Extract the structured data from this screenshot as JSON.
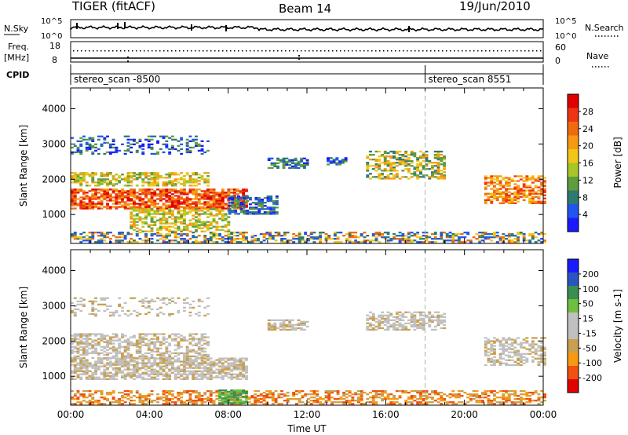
{
  "header": {
    "radar": "TIGER (fitACF)",
    "beam": "Beam 14",
    "date": "19/Jun/2010"
  },
  "param_panels": {
    "nsky_label": "N.Sky",
    "nsky_ticks": [
      "10^5",
      "10^0"
    ],
    "nsearch_label": "N.Search",
    "nsearch_ticks": [
      "10^5",
      "10^0"
    ],
    "freq_label_line1": "Freq.",
    "freq_label_line2": "[MHz]",
    "freq_ticks": [
      "18",
      "8"
    ],
    "nave_label": "Nave",
    "nave_ticks": [
      "60",
      "0"
    ],
    "cpid_label": "CPID",
    "cpid_segments": [
      {
        "name": "stereo_scan  -8500",
        "start_hour": 0
      },
      {
        "name": "stereo_scan  8551",
        "start_hour": 18
      }
    ]
  },
  "chart_data": [
    {
      "type": "heatmap",
      "title": "",
      "xlabel": "Time UT",
      "ylabel": "Slant Range [km]",
      "x_ticks": [
        "00:00",
        "04:00",
        "08:00",
        "12:00",
        "16:00",
        "20:00",
        "00:00"
      ],
      "xlim_hours": [
        0,
        24
      ],
      "y_ticks": [
        "4000",
        "3000",
        "2000",
        "1000"
      ],
      "ylim_km": [
        180,
        4590
      ],
      "colorbar": {
        "label": "Power [dB]",
        "ticks": [
          "28",
          "24",
          "20",
          "16",
          "12",
          "8",
          "4"
        ],
        "range": [
          0,
          32
        ],
        "colors": [
          "#1a1aff",
          "#2255ee",
          "#2e7a70",
          "#5f9c3e",
          "#a6c62a",
          "#f2c616",
          "#f59a12",
          "#f06a12",
          "#ee3412",
          "#e00000"
        ]
      }
    },
    {
      "type": "heatmap",
      "title": "",
      "xlabel": "Time UT",
      "ylabel": "Slant Range [km]",
      "x_ticks": [
        "00:00",
        "04:00",
        "08:00",
        "12:00",
        "16:00",
        "20:00",
        "00:00"
      ],
      "xlim_hours": [
        0,
        24
      ],
      "y_ticks": [
        "4000",
        "3000",
        "2000",
        "1000"
      ],
      "ylim_km": [
        180,
        4590
      ],
      "colorbar": {
        "label": "Velocity [m s-1]",
        "ticks": [
          "200",
          "100",
          "50",
          "15",
          "-15",
          "-50",
          "-100",
          "-200"
        ],
        "range": [
          -250,
          250
        ],
        "colors": [
          "#e00000",
          "#f05010",
          "#f59a12",
          "#c8a050",
          "#c0c0c0",
          "#c0c0c0",
          "#70c040",
          "#3a8f50",
          "#2a55c0",
          "#1a1aff"
        ]
      }
    }
  ]
}
